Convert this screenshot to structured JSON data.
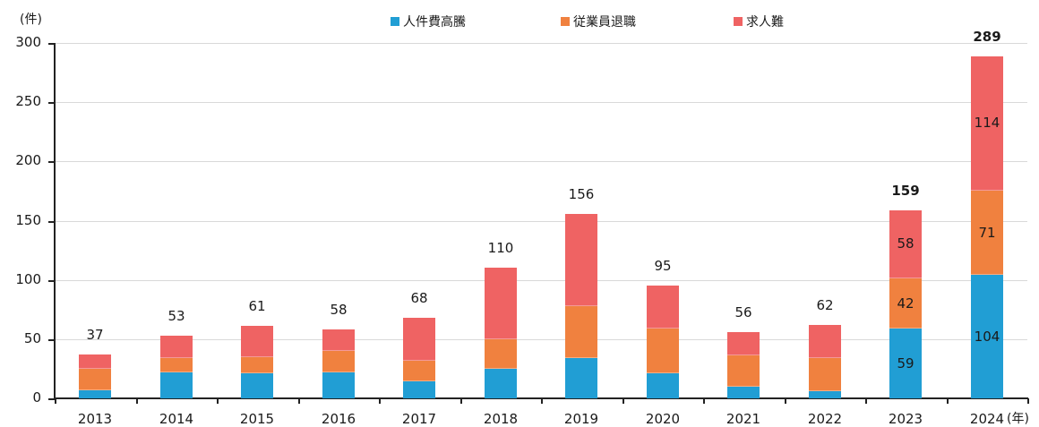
{
  "chart_data": {
    "type": "bar",
    "stacked": true,
    "title": "",
    "xlabel": "(年)",
    "ylabel": "(件)",
    "ylim": [
      0,
      300
    ],
    "yticks": [
      0,
      50,
      100,
      150,
      200,
      250,
      300
    ],
    "grid": true,
    "legend_position": "top",
    "categories": [
      "2013",
      "2014",
      "2015",
      "2016",
      "2017",
      "2018",
      "2019",
      "2020",
      "2021",
      "2022",
      "2023",
      "2024"
    ],
    "series": [
      {
        "name": "人件費高騰",
        "color": "#219ED4",
        "values": [
          7,
          22,
          21,
          22,
          14,
          25,
          34,
          21,
          10,
          6,
          59,
          104
        ]
      },
      {
        "name": "従業員退職",
        "color": "#F0813F",
        "values": [
          18,
          12,
          14,
          18,
          18,
          25,
          44,
          38,
          26,
          28,
          42,
          71
        ]
      },
      {
        "name": "求人難",
        "color": "#EF6363",
        "values": [
          12,
          19,
          26,
          18,
          36,
          60,
          78,
          36,
          20,
          28,
          58,
          114
        ]
      }
    ],
    "totals": [
      37,
      53,
      61,
      58,
      68,
      110,
      156,
      95,
      56,
      62,
      159,
      289
    ],
    "bold_totals": [
      "2023",
      "2024"
    ],
    "segment_labels_shown_for": [
      "2023",
      "2024"
    ]
  },
  "labels": {
    "y_unit": "(件)",
    "x_unit": "(年)"
  }
}
